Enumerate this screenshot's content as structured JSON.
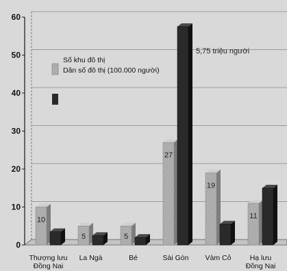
{
  "chart_data": {
    "type": "bar",
    "categories": [
      [
        "Thượng lưu",
        "Đồng Nai"
      ],
      [
        "La Ngà"
      ],
      [
        "Bé"
      ],
      [
        "Sài Gòn"
      ],
      [
        "Vàm Cỏ"
      ],
      [
        "Hạ lưu",
        "Đồng Nai"
      ]
    ],
    "series": [
      {
        "name": "Số khu đô thị",
        "values": [
          10,
          5,
          5,
          27,
          19,
          11
        ],
        "data_labels": [
          "10",
          "5",
          "5",
          "27",
          "19",
          "11"
        ],
        "color": "#a9a9a9",
        "pattern": "hatched"
      },
      {
        "name": "Dân số đô thị (100.000 người)",
        "values": [
          3.5,
          2.5,
          2,
          57.5,
          5.5,
          15
        ],
        "color": "#2a2a2a"
      }
    ],
    "annotation": "5,75 triệu người",
    "yticks": [
      0,
      10,
      20,
      30,
      40,
      50,
      60
    ],
    "ylim": [
      0,
      60
    ],
    "grid": true,
    "legend_position": "top-left",
    "style": "3d-bars"
  }
}
